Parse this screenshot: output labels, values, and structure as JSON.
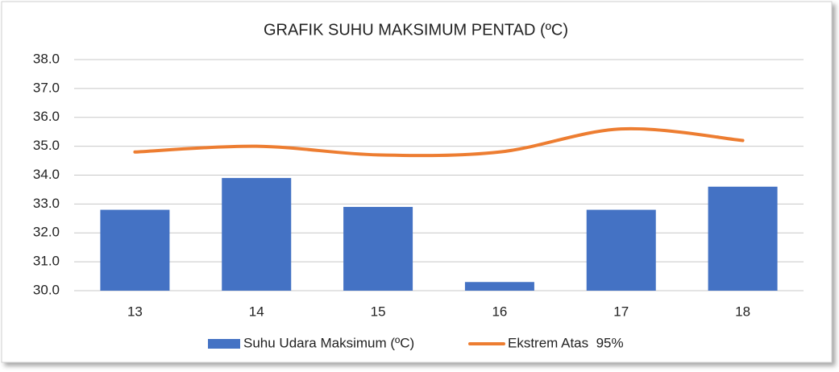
{
  "chart_data": {
    "type": "combo",
    "title": "GRAFIK SUHU MAKSIMUM PENTAD (ºC)",
    "categories": [
      "13",
      "14",
      "15",
      "16",
      "17",
      "18"
    ],
    "series": [
      {
        "name": "Suhu Udara Maksimum (ºC)",
        "type": "bar",
        "color": "#4472c4",
        "values": [
          32.8,
          33.9,
          32.9,
          30.3,
          32.8,
          33.6
        ]
      },
      {
        "name": "Ekstrem Atas  95%",
        "type": "line",
        "color": "#ed7d31",
        "values": [
          34.8,
          35.0,
          34.7,
          34.8,
          35.6,
          35.2
        ]
      }
    ],
    "ylim": [
      30,
      38
    ],
    "yticks": [
      {
        "value": 30,
        "label": "30.0"
      },
      {
        "value": 31,
        "label": "31.0"
      },
      {
        "value": 32,
        "label": "32.0"
      },
      {
        "value": 33,
        "label": "33.0"
      },
      {
        "value": 34,
        "label": "34.0"
      },
      {
        "value": 35,
        "label": "35.0"
      },
      {
        "value": 36,
        "label": "36.0"
      },
      {
        "value": 37,
        "label": "37.0"
      },
      {
        "value": 38,
        "label": "38.0"
      }
    ],
    "grid": true,
    "legend": "bottom"
  }
}
